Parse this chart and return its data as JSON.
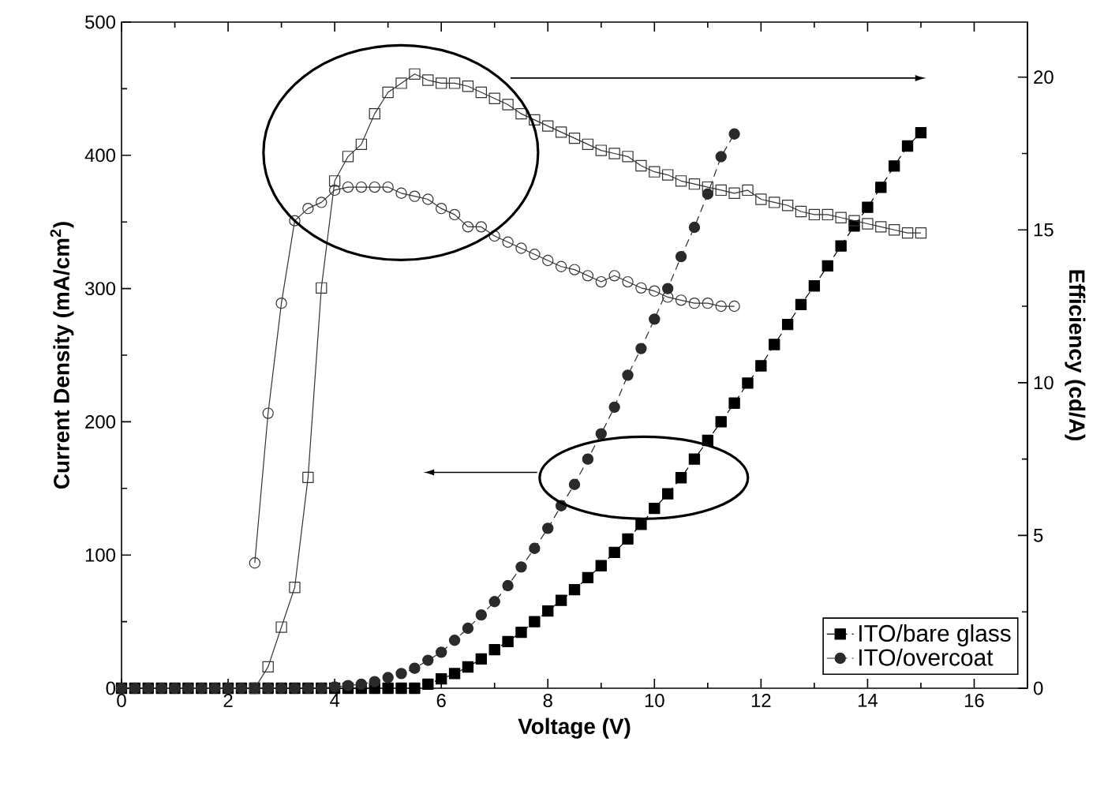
{
  "chart_data": {
    "type": "line",
    "xlabel": "Voltage (V)",
    "ylabel": "Current Density (mA/cm$^{2}$)",
    "y2label": "Efficiency (cd/A)",
    "xlim": [
      0,
      17
    ],
    "xticks": [
      0,
      2,
      4,
      6,
      8,
      10,
      12,
      14,
      16
    ],
    "ylim": [
      0,
      500
    ],
    "yticks": [
      0,
      100,
      200,
      300,
      400,
      500
    ],
    "y2lim": [
      0,
      21.8
    ],
    "y2ticks": [
      0,
      5,
      10,
      15,
      20
    ],
    "legend": "bottom right",
    "series": [
      {
        "name": "ITO/bare glass",
        "color": "#000000",
        "marker": "square",
        "line_style": "dashed",
        "x": [
          0,
          0.25,
          0.5,
          0.75,
          1,
          1.25,
          1.5,
          1.75,
          2,
          2.25,
          2.5,
          2.75,
          3,
          3.25,
          3.5,
          3.75,
          4,
          4.25,
          4.5,
          4.75,
          5,
          5.25,
          5.5,
          5.75,
          6,
          6.25,
          6.5,
          6.75,
          7,
          7.25,
          7.5,
          7.75,
          8,
          8.25,
          8.5,
          8.75,
          9,
          9.25,
          9.5,
          9.75,
          10,
          10.25,
          10.5,
          10.75,
          11,
          11.25,
          11.5,
          11.75,
          12,
          12.25,
          12.5,
          12.75,
          13,
          13.25,
          13.5,
          13.75,
          14,
          14.25,
          14.5,
          14.75,
          15
        ],
        "values": [
          0,
          0,
          0,
          0,
          0,
          0,
          0,
          0,
          0,
          0,
          0,
          0,
          0,
          0,
          0,
          0,
          0,
          0,
          0,
          0,
          0,
          0,
          0,
          3,
          7,
          11,
          16,
          22,
          29,
          35,
          42,
          50,
          58,
          66,
          74,
          83,
          92,
          102,
          112,
          123,
          135,
          146,
          158,
          172,
          186,
          200,
          214,
          229,
          242,
          258,
          273,
          288,
          302,
          317,
          332,
          347,
          361,
          376,
          392,
          407,
          417
        ]
      },
      {
        "name": "ITO/overcoat",
        "color": "#2a2a2a",
        "marker": "circle",
        "line_style": "dashed",
        "x": [
          0,
          0.25,
          0.5,
          0.75,
          1,
          1.25,
          1.5,
          1.75,
          2,
          2.25,
          2.5,
          2.75,
          3,
          3.25,
          3.5,
          3.75,
          4,
          4.25,
          4.5,
          4.75,
          5,
          5.25,
          5.5,
          5.75,
          6,
          6.25,
          6.5,
          6.75,
          7,
          7.25,
          7.5,
          7.75,
          8,
          8.25,
          8.5,
          8.75,
          9,
          9.25,
          9.5,
          9.75,
          10,
          10.25,
          10.5,
          10.75,
          11,
          11.25,
          11.5
        ],
        "values": [
          0,
          0,
          0,
          0,
          0,
          0,
          0,
          0,
          0,
          0,
          0,
          0,
          0,
          0,
          0,
          0,
          1,
          2,
          3,
          5,
          8,
          11,
          15,
          21,
          27,
          36,
          45,
          55,
          65,
          77,
          91,
          105,
          120,
          137,
          153,
          172,
          191,
          211,
          235,
          255,
          277,
          300,
          324,
          346,
          371,
          399,
          416
        ]
      },
      {
        "color": "#333333",
        "marker": "square",
        "line_style": "solid",
        "axis": "y2",
        "x": [
          2.5,
          2.75,
          3,
          3.25,
          3.5,
          3.75,
          4,
          4.25,
          4.5,
          4.75,
          5,
          5.25,
          5.5,
          5.75,
          6,
          6.25,
          6.5,
          6.75,
          7,
          7.25,
          7.5,
          7.75,
          8,
          8.25,
          8.5,
          8.75,
          9,
          9.25,
          9.5,
          9.75,
          10,
          10.25,
          10.5,
          10.75,
          11,
          11.25,
          11.5,
          11.75,
          12,
          12.25,
          12.5,
          12.75,
          13,
          13.25,
          13.5,
          13.75,
          14,
          14.25,
          14.5,
          14.75,
          15
        ],
        "values": [
          0,
          0.7,
          2.0,
          3.3,
          6.9,
          13.1,
          16.6,
          17.4,
          17.8,
          18.8,
          19.5,
          19.8,
          20.1,
          19.9,
          19.8,
          19.8,
          19.7,
          19.5,
          19.3,
          19.1,
          18.8,
          18.6,
          18.4,
          18.2,
          18.0,
          17.8,
          17.6,
          17.5,
          17.4,
          17.1,
          16.9,
          16.8,
          16.6,
          16.5,
          16.4,
          16.3,
          16.2,
          16.3,
          16.0,
          15.9,
          15.8,
          15.6,
          15.5,
          15.5,
          15.4,
          15.3,
          15.2,
          15.1,
          15.0,
          14.9,
          14.9
        ]
      },
      {
        "color": "#333333",
        "marker": "circle",
        "line_style": "solid",
        "axis": "y2",
        "x": [
          2.5,
          2.75,
          3,
          3.25,
          3.5,
          3.75,
          4,
          4.25,
          4.5,
          4.75,
          5,
          5.25,
          5.5,
          5.75,
          6,
          6.25,
          6.5,
          6.75,
          7,
          7.25,
          7.5,
          7.75,
          8,
          8.25,
          8.5,
          8.75,
          9,
          9.25,
          9.5,
          9.75,
          10,
          10.25,
          10.5,
          10.75,
          11,
          11.25,
          11.5
        ],
        "values": [
          4.1,
          9.0,
          12.6,
          15.3,
          15.7,
          15.9,
          16.3,
          16.4,
          16.4,
          16.4,
          16.4,
          16.2,
          16.1,
          16.0,
          15.7,
          15.5,
          15.1,
          15.1,
          14.8,
          14.6,
          14.4,
          14.2,
          14.0,
          13.8,
          13.7,
          13.5,
          13.3,
          13.5,
          13.3,
          13.1,
          13.0,
          12.8,
          12.7,
          12.6,
          12.6,
          12.5,
          12.5
        ]
      }
    ]
  }
}
